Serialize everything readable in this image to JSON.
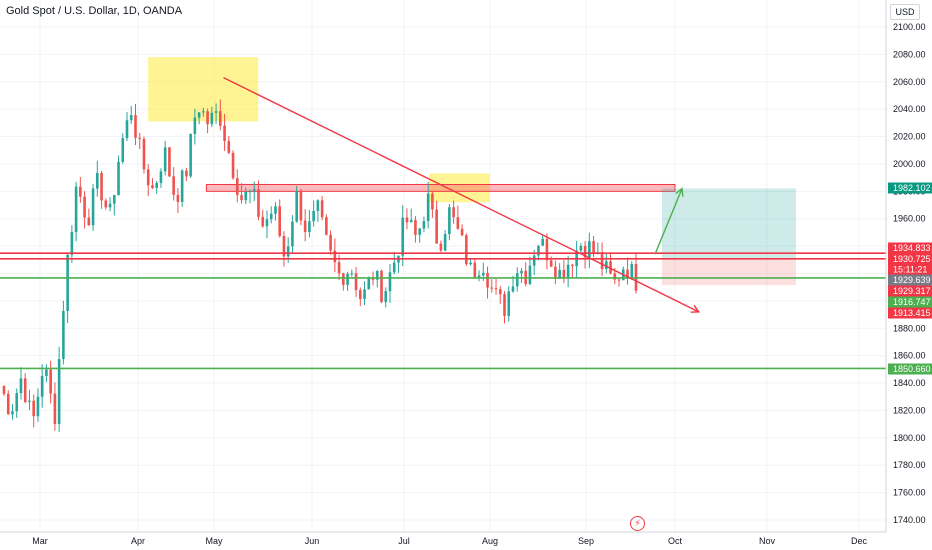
{
  "header": {
    "title": "Gold Spot / U.S. Dollar, 1D, OANDA",
    "currency": "USD"
  },
  "colors": {
    "up": "#26a69a",
    "down": "#ef5350",
    "resistance": "#f23645",
    "support": "#089981",
    "zone_yellow": "#ffeb3b",
    "zone_red": "#f7525f",
    "target": "#26a69a",
    "stop": "#ef5350"
  },
  "chart_data": {
    "type": "candlestick",
    "x_ticks": [
      "Mar",
      "Apr",
      "May",
      "Jun",
      "Jul",
      "Aug",
      "Sep",
      "Oct",
      "Nov",
      "Dec"
    ],
    "y_ticks": [
      1740,
      1760,
      1780,
      1800,
      1820,
      1840,
      1860,
      1880,
      1900,
      1920,
      1940,
      1960,
      1980,
      2000,
      2020,
      2040,
      2060,
      2080,
      2100
    ],
    "ylim": [
      1725,
      2110
    ],
    "price_labels": [
      {
        "value": 1982.102,
        "text": "1982.102",
        "color": "#089981"
      },
      {
        "value": 1934.833,
        "text": "1934.833",
        "color": "#f23645"
      },
      {
        "value": 1930.725,
        "text": "1930.725",
        "color": "#f23645"
      },
      {
        "value": 1929.639,
        "text": "1929.639",
        "color": "#787b86"
      },
      {
        "value": 1929.317,
        "text": "1929.317",
        "color": "#f23645"
      },
      {
        "value": 1916.747,
        "text": "1916.747",
        "color": "#4caf50"
      },
      {
        "value": 1913.415,
        "text": "1913.415",
        "color": "#f23645"
      },
      {
        "value": 1850.66,
        "text": "1850.660",
        "color": "#4caf50"
      }
    ],
    "countdown": "15:11:21",
    "candle_path": [
      1838,
      1820,
      1845,
      1810,
      1855,
      1815,
      1918,
      1985,
      1960,
      1988,
      1960,
      2012,
      2040,
      2000,
      1980,
      2010,
      1975,
      1995,
      2045,
      2030,
      2038,
      2005,
      1975,
      1978,
      1955,
      1968,
      1930,
      1978,
      1950,
      1965,
      1935,
      1918,
      1925,
      1900,
      1920,
      1905,
      1930,
      1960,
      1945,
      1975,
      1940,
      1965,
      1945,
      1920,
      1930,
      1905,
      1895,
      1925,
      1920,
      1945,
      1935,
      1920,
      1930,
      1942,
      1938,
      1925,
      1912,
      1928,
      1915
    ],
    "horizontal_levels": [
      {
        "value": 1934.833,
        "color": "#f23645"
      },
      {
        "value": 1930.725,
        "color": "#f23645"
      },
      {
        "value": 1916.747,
        "color": "#4caf50"
      },
      {
        "value": 1850.66,
        "color": "#4caf50"
      }
    ],
    "trendline": {
      "from": {
        "date": "2023-05-04",
        "price": 2063
      },
      "to": {
        "date": "2023-10-09",
        "price": 1892
      }
    },
    "zones": [
      {
        "kind": "supply",
        "from": "2023-04-05",
        "to": "2023-05-15",
        "high": 2078,
        "low": 2031
      },
      {
        "kind": "supply",
        "from": "2023-07-10",
        "to": "2023-08-01",
        "high": 1993,
        "low": 1972
      },
      {
        "kind": "resistance_band",
        "from": "2023-04-28",
        "to": "2023-10-01",
        "high": 1985,
        "low": 1980
      }
    ],
    "long_position": {
      "entry": 1930.7,
      "target": 1982.1,
      "stop": 1911.5
    },
    "arrow": {
      "from": 1934,
      "to": 1982
    }
  }
}
